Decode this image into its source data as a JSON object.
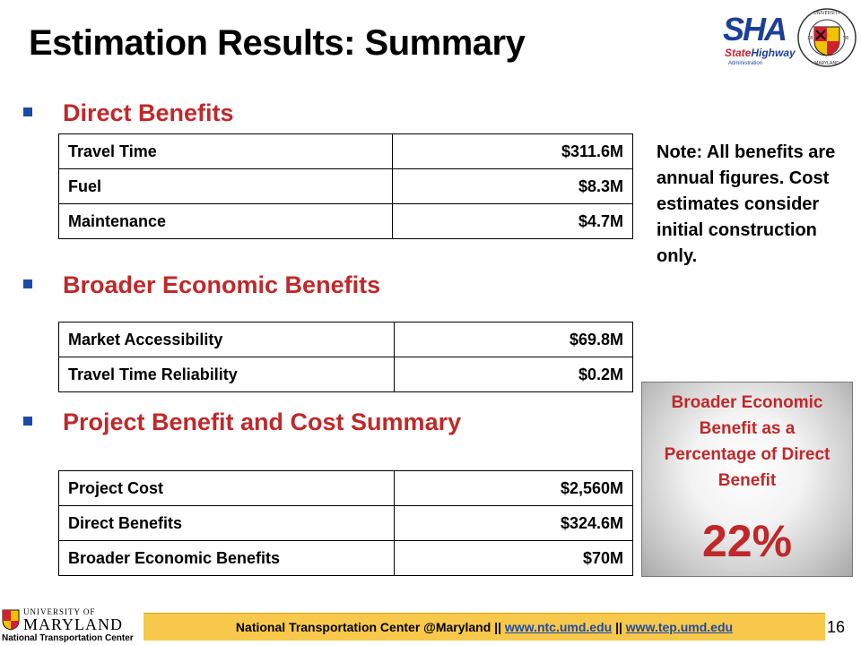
{
  "slide": {
    "title": "Estimation Results: Summary",
    "page_number": "16"
  },
  "logos": {
    "sha_mark": "SHA",
    "sha_state": "State",
    "sha_highway": "Highway",
    "sha_admin": "Administration",
    "umd_seal_text": "UNIVERSITY OF MARYLAND",
    "footer_umd_top": "UNIVERSITY OF",
    "footer_umd_main": "MARYLAND",
    "footer_ntc": "National Transportation Center"
  },
  "sections": [
    {
      "heading": "Direct Benefits",
      "rows": [
        {
          "label": "Travel Time",
          "value": "$311.6M"
        },
        {
          "label": "Fuel",
          "value": "$8.3M"
        },
        {
          "label": "Maintenance",
          "value": "$4.7M"
        }
      ]
    },
    {
      "heading": "Broader Economic Benefits",
      "rows": [
        {
          "label": "Market Accessibility",
          "value": "$69.8M"
        },
        {
          "label": "Travel Time Reliability",
          "value": "$0.2M"
        }
      ]
    },
    {
      "heading": "Project Benefit and Cost Summary",
      "rows": [
        {
          "label": "Project Cost",
          "value": "$2,560M"
        },
        {
          "label": "Direct Benefits",
          "value": "$324.6M"
        },
        {
          "label": "Broader Economic Benefits",
          "value": "$70M"
        }
      ]
    }
  ],
  "note": "Note: All benefits are annual figures. Cost estimates consider initial construction only.",
  "callout": {
    "text": "Broader Economic Benefit as a Percentage of Direct Benefit",
    "percentage": "22%"
  },
  "footer": {
    "prefix": "National Transportation Center @Maryland ||",
    "link1": "www.ntc.umd.edu",
    "separator": "||",
    "link2": "www.tep.umd.edu"
  },
  "colors": {
    "heading_red": "#c0282a",
    "bullet_blue": "#1d49a8",
    "footer_gold": "#f7c84a"
  }
}
